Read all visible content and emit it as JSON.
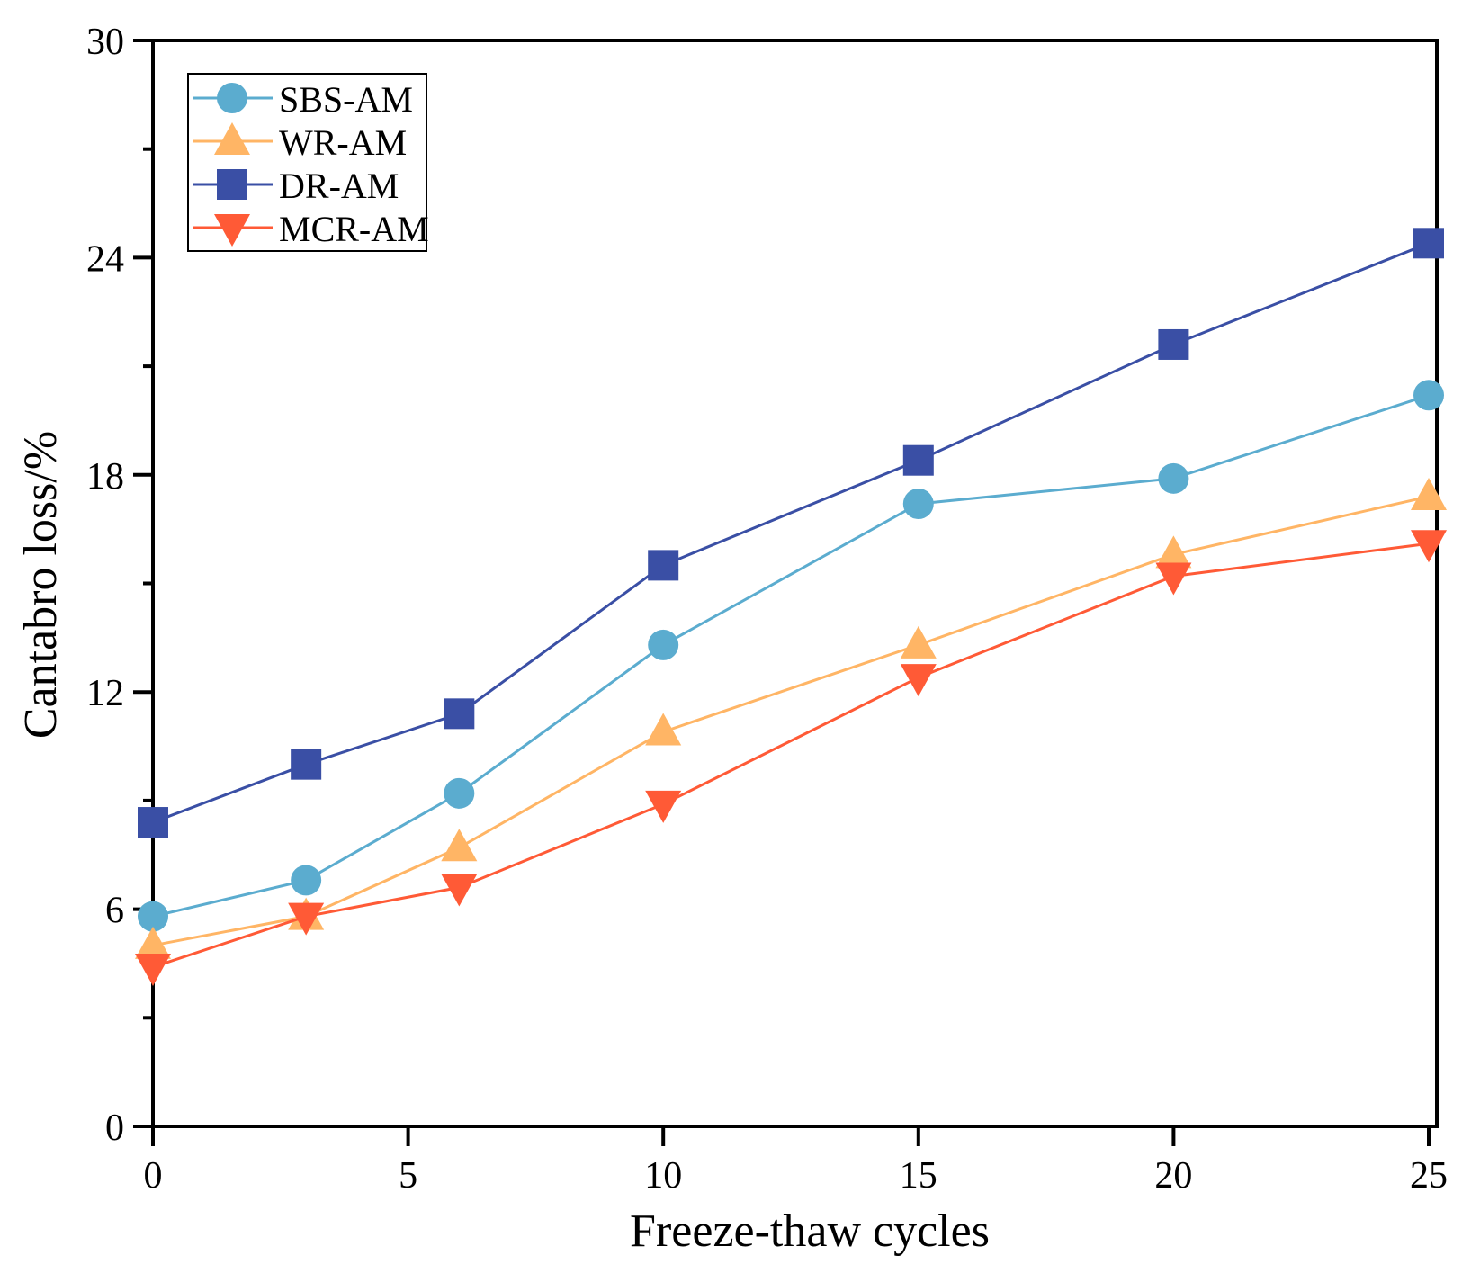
{
  "chart_data": {
    "type": "line",
    "title": "",
    "xlabel": "Freeze-thaw cycles",
    "ylabel": "Cantabro loss/%",
    "xlim": [
      0,
      25
    ],
    "ylim": [
      0,
      30
    ],
    "xticks": [
      0,
      5,
      10,
      15,
      20,
      25
    ],
    "yticks": [
      0,
      6,
      12,
      18,
      24,
      30
    ],
    "grid": false,
    "legend_position": "top-left",
    "x": [
      0,
      3,
      6,
      10,
      15,
      20,
      25
    ],
    "series": [
      {
        "name": "SBS-AM",
        "marker": "circle",
        "color": "#5BACCF",
        "values": [
          5.8,
          6.8,
          9.2,
          13.3,
          17.2,
          17.9,
          20.2
        ]
      },
      {
        "name": "WR-AM",
        "marker": "triangle-up",
        "color": "#FFB565",
        "values": [
          5.0,
          5.8,
          7.7,
          10.9,
          13.3,
          15.8,
          17.4
        ]
      },
      {
        "name": "DR-AM",
        "marker": "square",
        "color": "#3A4FA5",
        "values": [
          8.4,
          10.0,
          11.4,
          15.5,
          18.4,
          21.6,
          24.4
        ]
      },
      {
        "name": "MCR-AM",
        "marker": "triangle-down",
        "color": "#FF5A36",
        "values": [
          4.4,
          5.8,
          6.6,
          8.9,
          12.4,
          15.2,
          16.1
        ]
      }
    ]
  }
}
